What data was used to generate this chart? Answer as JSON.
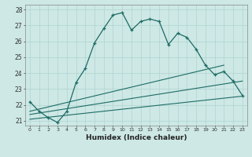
{
  "xlabel": "Humidex (Indice chaleur)",
  "xlim": [
    -0.5,
    23.5
  ],
  "ylim": [
    20.7,
    28.3
  ],
  "yticks": [
    21,
    22,
    23,
    24,
    25,
    26,
    27,
    28
  ],
  "xticks": [
    0,
    1,
    2,
    3,
    4,
    5,
    6,
    7,
    8,
    9,
    10,
    11,
    12,
    13,
    14,
    15,
    16,
    17,
    18,
    19,
    20,
    21,
    22,
    23
  ],
  "background_color": "#cde8e5",
  "grid_color": "#aed4d0",
  "line_color": "#1e6b65",
  "line1_x": [
    0,
    1,
    2,
    3,
    4,
    5,
    6,
    7,
    8,
    9,
    10,
    11,
    12,
    13,
    14,
    15,
    16,
    17,
    18,
    19,
    20,
    21,
    22,
    23
  ],
  "line1_y": [
    22.2,
    21.6,
    21.2,
    20.9,
    21.6,
    23.4,
    24.3,
    25.9,
    26.8,
    27.65,
    27.8,
    26.7,
    27.25,
    27.4,
    27.25,
    25.8,
    26.5,
    26.25,
    25.5,
    24.5,
    23.9,
    24.1,
    23.5,
    22.6
  ],
  "line2_x": [
    0,
    21
  ],
  "line2_y": [
    21.6,
    24.5
  ],
  "line3_x": [
    0,
    23
  ],
  "line3_y": [
    21.4,
    23.5
  ],
  "line4_x": [
    0,
    23
  ],
  "line4_y": [
    21.1,
    22.55
  ]
}
